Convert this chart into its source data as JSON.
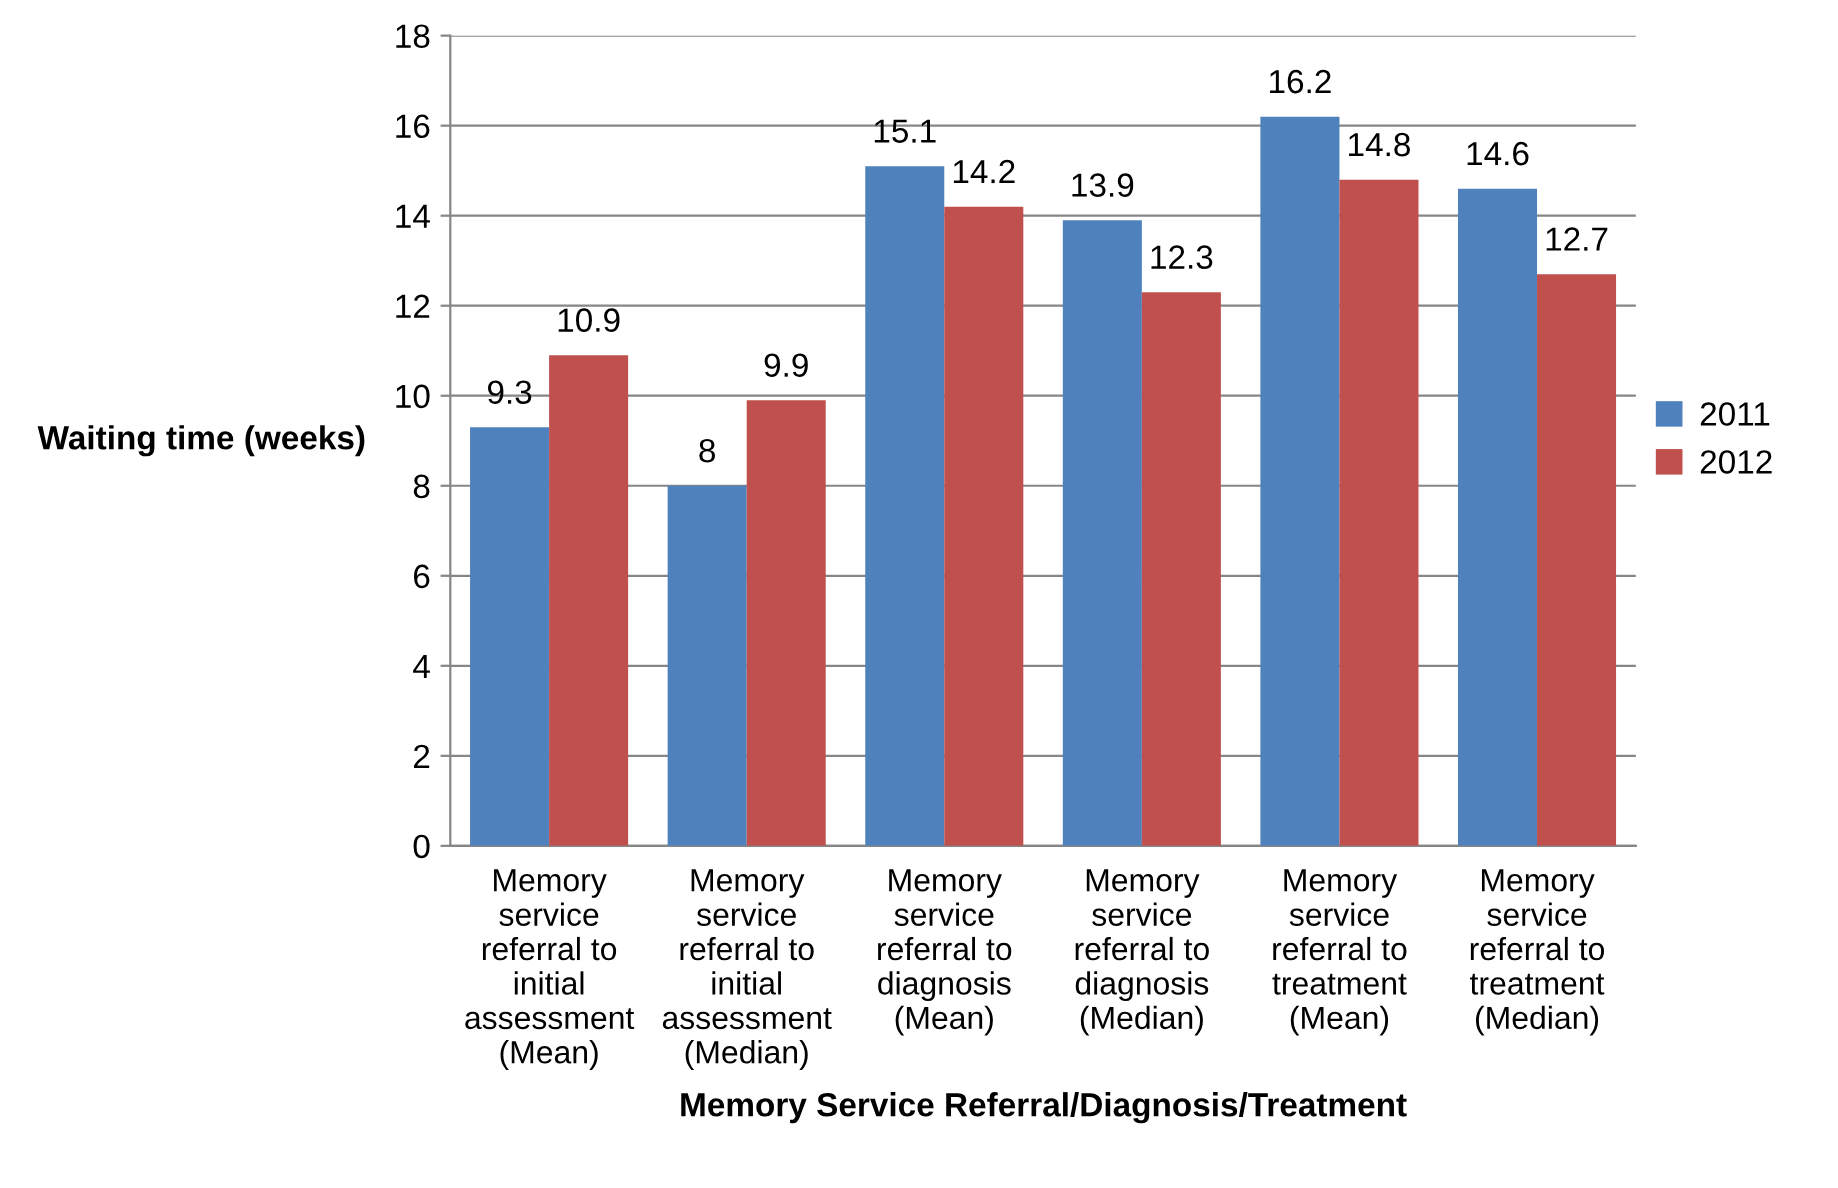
{
  "chart_data": {
    "type": "bar",
    "xlabel": "Memory Service Referral/Diagnosis/Treatment",
    "ylabel": "Waiting time (weeks)",
    "categories": [
      "Memory\nservice\nreferral to\ninitial\nassessment\n(Mean)",
      "Memory\nservice\nreferral to\ninitial\nassessment\n(Median)",
      "Memory\nservice\nreferral to\ndiagnosis\n(Mean)",
      "Memory\nservice\nreferral to\ndiagnosis\n(Median)",
      "Memory\nservice\nreferral to\ntreatment\n(Mean)",
      "Memory\nservice\nreferral to\ntreatment\n(Median)"
    ],
    "series": [
      {
        "name": "2011",
        "color": "#4f81bd",
        "values": [
          9.3,
          8,
          15.1,
          13.9,
          16.2,
          14.6
        ]
      },
      {
        "name": "2012",
        "color": "#c0504d",
        "values": [
          10.9,
          9.9,
          14.2,
          12.3,
          14.8,
          12.7
        ]
      }
    ],
    "ylim": [
      0,
      18
    ],
    "yticks": [
      0,
      2,
      4,
      6,
      8,
      10,
      12,
      14,
      16,
      18
    ],
    "grid": "y",
    "legend": "right",
    "data_labels": true
  }
}
